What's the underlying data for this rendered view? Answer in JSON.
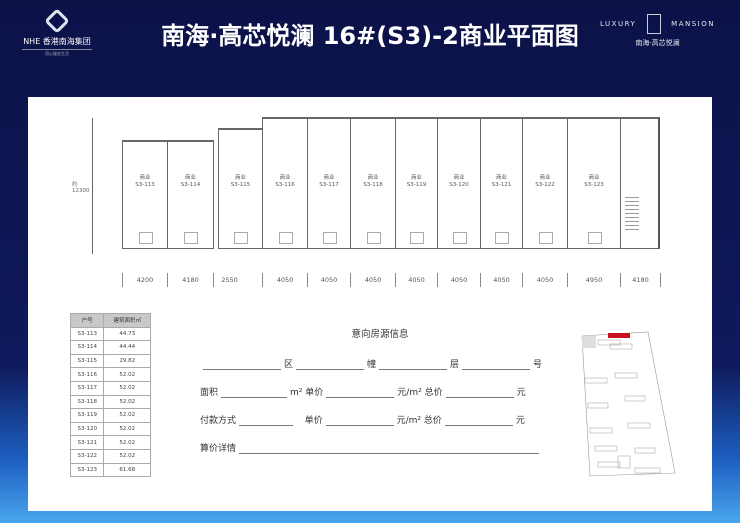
{
  "header": {
    "title": "南海·高芯悦澜 16#(S3)-2商业平面图",
    "left_logo": {
      "name": "NHE 香港南海集团",
      "tagline": "用心服务生活"
    },
    "right_logo": {
      "left": "LUXURY",
      "right": "MANSION",
      "sub": "南海·高芯悦澜"
    }
  },
  "plan": {
    "unit_type": "商业",
    "units": [
      "S3-113",
      "S3-114",
      "S3-115",
      "S3-116",
      "S3-117",
      "S3-118",
      "S3-119",
      "S3-120",
      "S3-121",
      "S3-122",
      "S3-123"
    ],
    "dimensions": [
      "4200",
      "4180",
      "2550",
      "4050",
      "4050",
      "4050",
      "4050",
      "4050",
      "4050",
      "4050",
      "4950",
      "4180"
    ],
    "height_dim": "约12300"
  },
  "table": {
    "headers": [
      "户号",
      "建筑面积㎡"
    ],
    "rows": [
      [
        "S3-113",
        "44.73"
      ],
      [
        "S3-114",
        "44.44"
      ],
      [
        "S3-115",
        "29.82"
      ],
      [
        "S3-116",
        "52.02"
      ],
      [
        "S3-117",
        "52.02"
      ],
      [
        "S3-118",
        "52.02"
      ],
      [
        "S3-119",
        "52.02"
      ],
      [
        "S3-120",
        "52.02"
      ],
      [
        "S3-121",
        "52.02"
      ],
      [
        "S3-122",
        "52.02"
      ],
      [
        "S3-123",
        "61.68"
      ]
    ]
  },
  "form": {
    "title": "意向房源信息",
    "qu": "区",
    "dong": "幢",
    "ceng": "层",
    "hao": "号",
    "area": "面积",
    "m2": "m²",
    "unit_price": "单价",
    "per_m2": "元/m²",
    "total": "总价",
    "yuan": "元",
    "payment": "付款方式",
    "details": "算价详情"
  },
  "colors": {
    "header_bg": "#0c1248",
    "highlight": "#c8101e"
  }
}
